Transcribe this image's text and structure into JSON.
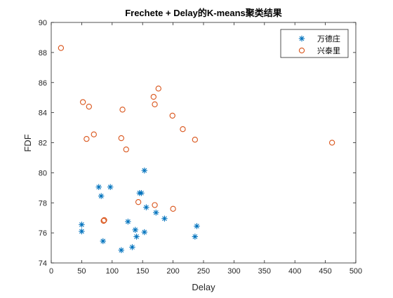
{
  "chart_data": {
    "type": "scatter",
    "title": "Frechete + Delay的K-means聚类结果",
    "xlabel": "Delay",
    "ylabel": "FDF",
    "xlim": [
      0,
      500
    ],
    "ylim": [
      74,
      90
    ],
    "xticks": [
      0,
      50,
      100,
      150,
      200,
      250,
      300,
      350,
      400,
      450,
      500
    ],
    "yticks": [
      74,
      76,
      78,
      80,
      82,
      84,
      86,
      88,
      90
    ],
    "grid": false,
    "legend_position": "top-right",
    "series": [
      {
        "name": "万德庄",
        "marker": "asterisk",
        "color": "#0072BD",
        "points": [
          [
            50,
            76.55
          ],
          [
            50,
            76.1
          ],
          [
            78,
            79.05
          ],
          [
            82,
            78.45
          ],
          [
            85,
            75.45
          ],
          [
            97,
            79.05
          ],
          [
            115,
            74.85
          ],
          [
            126,
            76.75
          ],
          [
            133,
            75.05
          ],
          [
            138,
            76.2
          ],
          [
            140,
            75.75
          ],
          [
            145,
            78.65
          ],
          [
            148,
            78.65
          ],
          [
            153,
            80.15
          ],
          [
            153,
            76.05
          ],
          [
            156,
            77.7
          ],
          [
            172,
            77.35
          ],
          [
            186,
            76.95
          ],
          [
            236,
            75.75
          ],
          [
            239,
            76.45
          ]
        ]
      },
      {
        "name": "兴泰里",
        "marker": "circle",
        "color": "#D95319",
        "points": [
          [
            16,
            88.3
          ],
          [
            52,
            84.7
          ],
          [
            58,
            82.25
          ],
          [
            62,
            84.4
          ],
          [
            70,
            82.55
          ],
          [
            86,
            76.8
          ],
          [
            87,
            76.85
          ],
          [
            115,
            82.3
          ],
          [
            117,
            84.2
          ],
          [
            123,
            81.55
          ],
          [
            143,
            78.05
          ],
          [
            168,
            85.05
          ],
          [
            170,
            84.55
          ],
          [
            170,
            77.85
          ],
          [
            176,
            85.6
          ],
          [
            199,
            83.8
          ],
          [
            200,
            77.6
          ],
          [
            216,
            82.9
          ],
          [
            236,
            82.2
          ],
          [
            461,
            82.0
          ]
        ]
      }
    ]
  }
}
